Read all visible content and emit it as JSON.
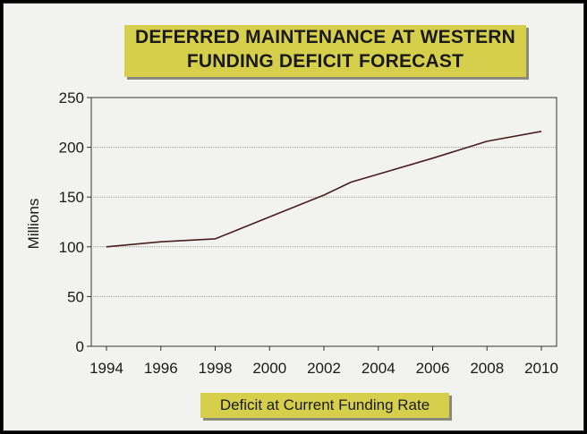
{
  "chart_data": {
    "type": "line",
    "title": "DEFERRED MAINTENANCE AT WESTERN",
    "subtitle": "FUNDING DEFICIT FORECAST",
    "ylabel": "Millions",
    "xlabel": "",
    "caption": "Deficit at Current Funding Rate",
    "ylim": [
      0,
      250
    ],
    "y_ticks": [
      "0",
      "50",
      "100",
      "150",
      "200",
      "250"
    ],
    "xlim": [
      1994,
      2010
    ],
    "x_ticks": [
      "1994",
      "1996",
      "1998",
      "2000",
      "2002",
      "2004",
      "2006",
      "2008",
      "2010"
    ],
    "grid": true,
    "series": [
      {
        "x": [
          1994,
          1996,
          1998,
          2000,
          2002,
          2003,
          2004,
          2006,
          2008,
          2010
        ],
        "values": [
          100,
          105,
          108,
          130,
          152,
          165,
          173,
          189,
          206,
          216
        ]
      }
    ]
  },
  "colors": {
    "background": "#f2f2ee",
    "title_box": "#d6cf4c",
    "line": "#4a1d1d",
    "grid": "#9a9a9a"
  }
}
